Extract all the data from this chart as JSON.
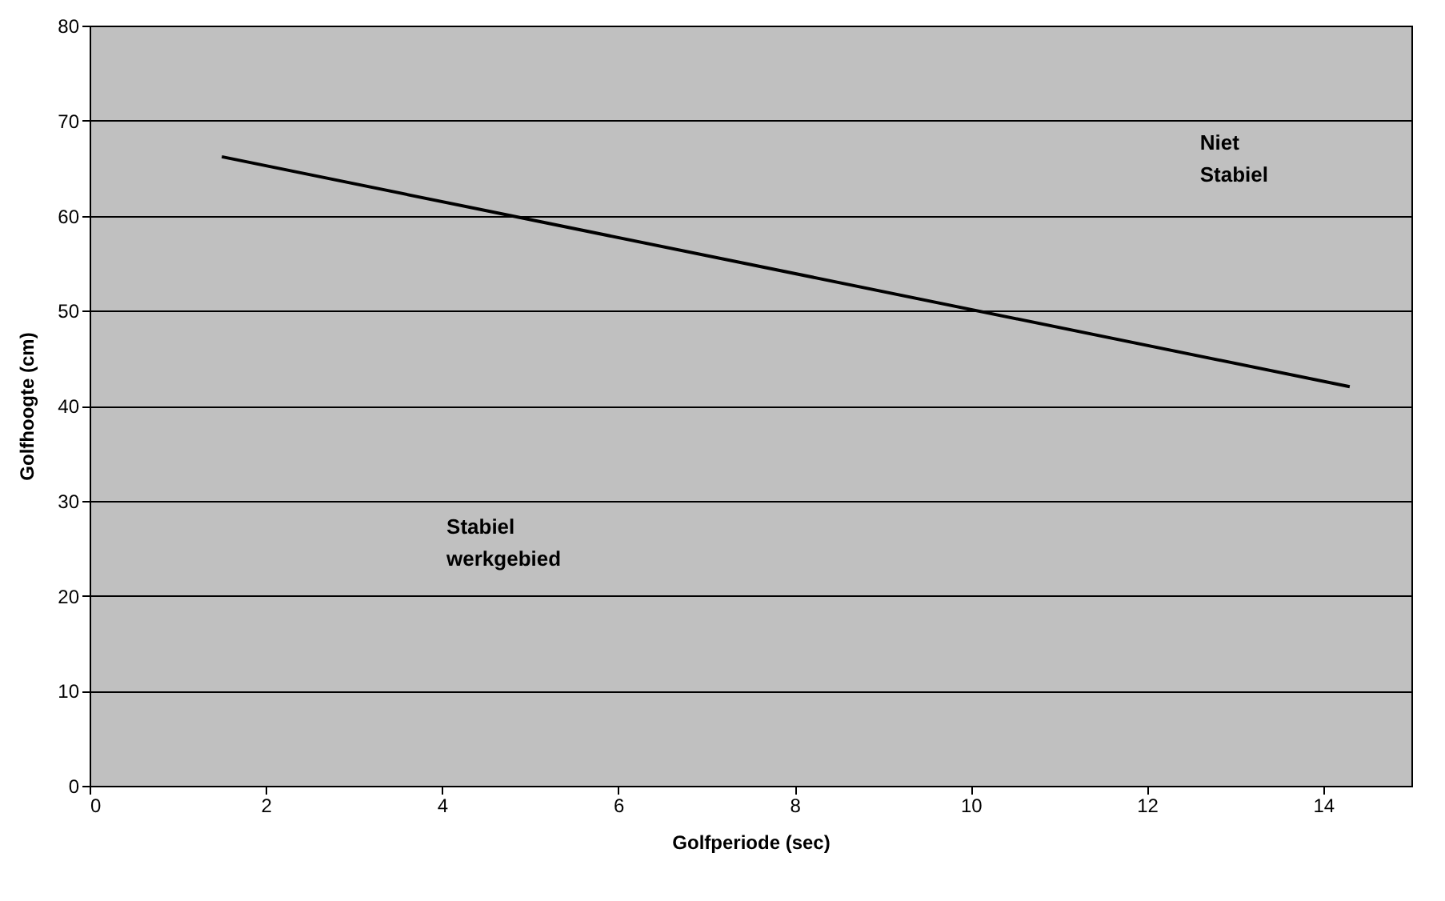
{
  "chart_data": {
    "type": "line",
    "xlabel": "Golfperiode (sec)",
    "ylabel": "Golfhoogte (cm)",
    "x": [
      1.5,
      14.3
    ],
    "series": [
      {
        "color": "#000000",
        "values": [
          66.2,
          42
        ]
      }
    ],
    "xlim": [
      0,
      15
    ],
    "xticks": [
      0,
      2,
      4,
      6,
      8,
      10,
      12,
      14
    ],
    "ylim": [
      0,
      80
    ],
    "yticks": [
      0,
      10,
      20,
      30,
      40,
      50,
      60,
      70,
      80
    ],
    "grid": "y",
    "marker": "none",
    "line_style": "solid",
    "annotations": [
      "Niet Stabiel",
      "Stabiel werkgebied"
    ]
  }
}
